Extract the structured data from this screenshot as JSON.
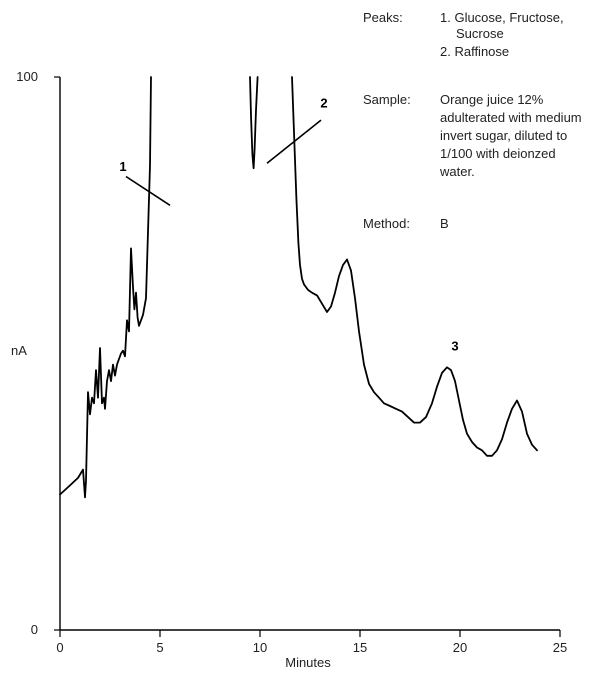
{
  "chart_data": {
    "type": "line",
    "xlabel": "Minutes",
    "ylabel": "nA",
    "xlim": [
      0,
      25
    ],
    "ylim": [
      0,
      100
    ],
    "x_ticks": [
      "0",
      "5",
      "10",
      "15",
      "20",
      "25"
    ],
    "y_ticks": [
      "0",
      "100"
    ],
    "grid": false,
    "segments": [
      {
        "x": [
          0.0,
          0.3,
          0.6,
          0.9,
          1.15,
          1.25,
          1.3,
          1.4,
          1.5,
          1.6,
          1.7,
          1.8,
          1.9,
          2.0,
          2.1,
          2.2,
          2.25,
          2.35,
          2.45,
          2.55,
          2.65,
          2.75,
          2.85,
          2.95,
          3.05,
          3.15,
          3.25,
          3.35,
          3.45,
          3.55,
          3.65,
          3.72,
          3.8,
          3.88,
          3.95,
          4.05,
          4.15,
          4.3,
          4.4,
          4.5,
          4.55
        ],
        "y": [
          24.5,
          25.5,
          26.5,
          27.5,
          29.0,
          24.0,
          27.0,
          43.0,
          39.0,
          42.0,
          41.0,
          47.0,
          42.0,
          51.0,
          41.0,
          42.0,
          40.0,
          45.0,
          47.0,
          45.0,
          48.0,
          46.0,
          48.0,
          49.0,
          50.0,
          50.5,
          49.5,
          56.0,
          54.0,
          69.0,
          62.0,
          58.0,
          61.0,
          56.5,
          55.0,
          56.0,
          57.0,
          60.0,
          72.0,
          84.0,
          100.0
        ]
      },
      {
        "x": [
          9.5,
          9.55,
          9.62,
          9.68,
          9.73,
          9.8,
          9.88
        ],
        "y": [
          100.0,
          93.0,
          86.0,
          83.5,
          87.0,
          94.0,
          100.0
        ]
      },
      {
        "x": [
          11.6,
          11.72,
          11.82,
          11.92,
          12.0,
          12.1,
          12.2,
          12.4,
          12.6,
          12.85,
          13.1,
          13.35,
          13.55,
          13.75,
          13.95,
          14.15,
          14.35,
          14.55,
          14.75,
          14.95,
          15.2,
          15.45,
          15.7,
          15.95,
          16.2,
          16.5,
          16.8,
          17.1,
          17.4,
          17.7,
          18.0,
          18.3,
          18.6,
          18.85,
          19.1,
          19.35,
          19.55,
          19.75,
          19.95,
          20.15,
          20.35,
          20.6,
          20.85,
          21.1,
          21.35,
          21.6,
          21.85,
          22.1,
          22.35,
          22.6,
          22.85,
          23.1,
          23.35,
          23.6,
          23.85
        ],
        "y": [
          100.0,
          88.0,
          78.0,
          70.0,
          66.0,
          63.5,
          62.5,
          61.5,
          61.0,
          60.5,
          59.0,
          57.5,
          58.5,
          61.0,
          64.0,
          66.0,
          67.0,
          65.0,
          60.0,
          54.0,
          48.0,
          44.5,
          43.0,
          42.0,
          41.0,
          40.5,
          40.0,
          39.5,
          38.5,
          37.5,
          37.5,
          38.5,
          41.0,
          44.0,
          46.5,
          47.5,
          47.0,
          45.0,
          41.5,
          38.0,
          35.5,
          34.0,
          33.0,
          32.5,
          31.5,
          31.5,
          32.5,
          34.5,
          37.5,
          40.0,
          41.5,
          39.5,
          35.5,
          33.5,
          32.5
        ]
      }
    ],
    "peak_labels": [
      {
        "text": "1",
        "x": 3.15,
        "y": 83.0,
        "line_from": [
          3.3,
          82.0
        ],
        "line_to": [
          5.5,
          76.8
        ]
      },
      {
        "text": "2",
        "x": 13.2,
        "y": 94.5,
        "line_from": [
          10.35,
          84.4
        ],
        "line_to": [
          13.05,
          92.2
        ]
      },
      {
        "text": "3",
        "x": 19.75,
        "y": 50.5
      }
    ]
  },
  "info": {
    "peaks_key": "Peaks:",
    "peaks_lines": [
      "1. Glucose, Fructose,",
      "Sucrose",
      "2. Raffinose"
    ],
    "sample_key": "Sample:",
    "sample_lines": [
      "Orange juice 12%",
      "adulterated with medium",
      "invert sugar, diluted to",
      "1/100 with deionzed",
      "water."
    ],
    "method_key": "Method:",
    "method_value": "B"
  }
}
